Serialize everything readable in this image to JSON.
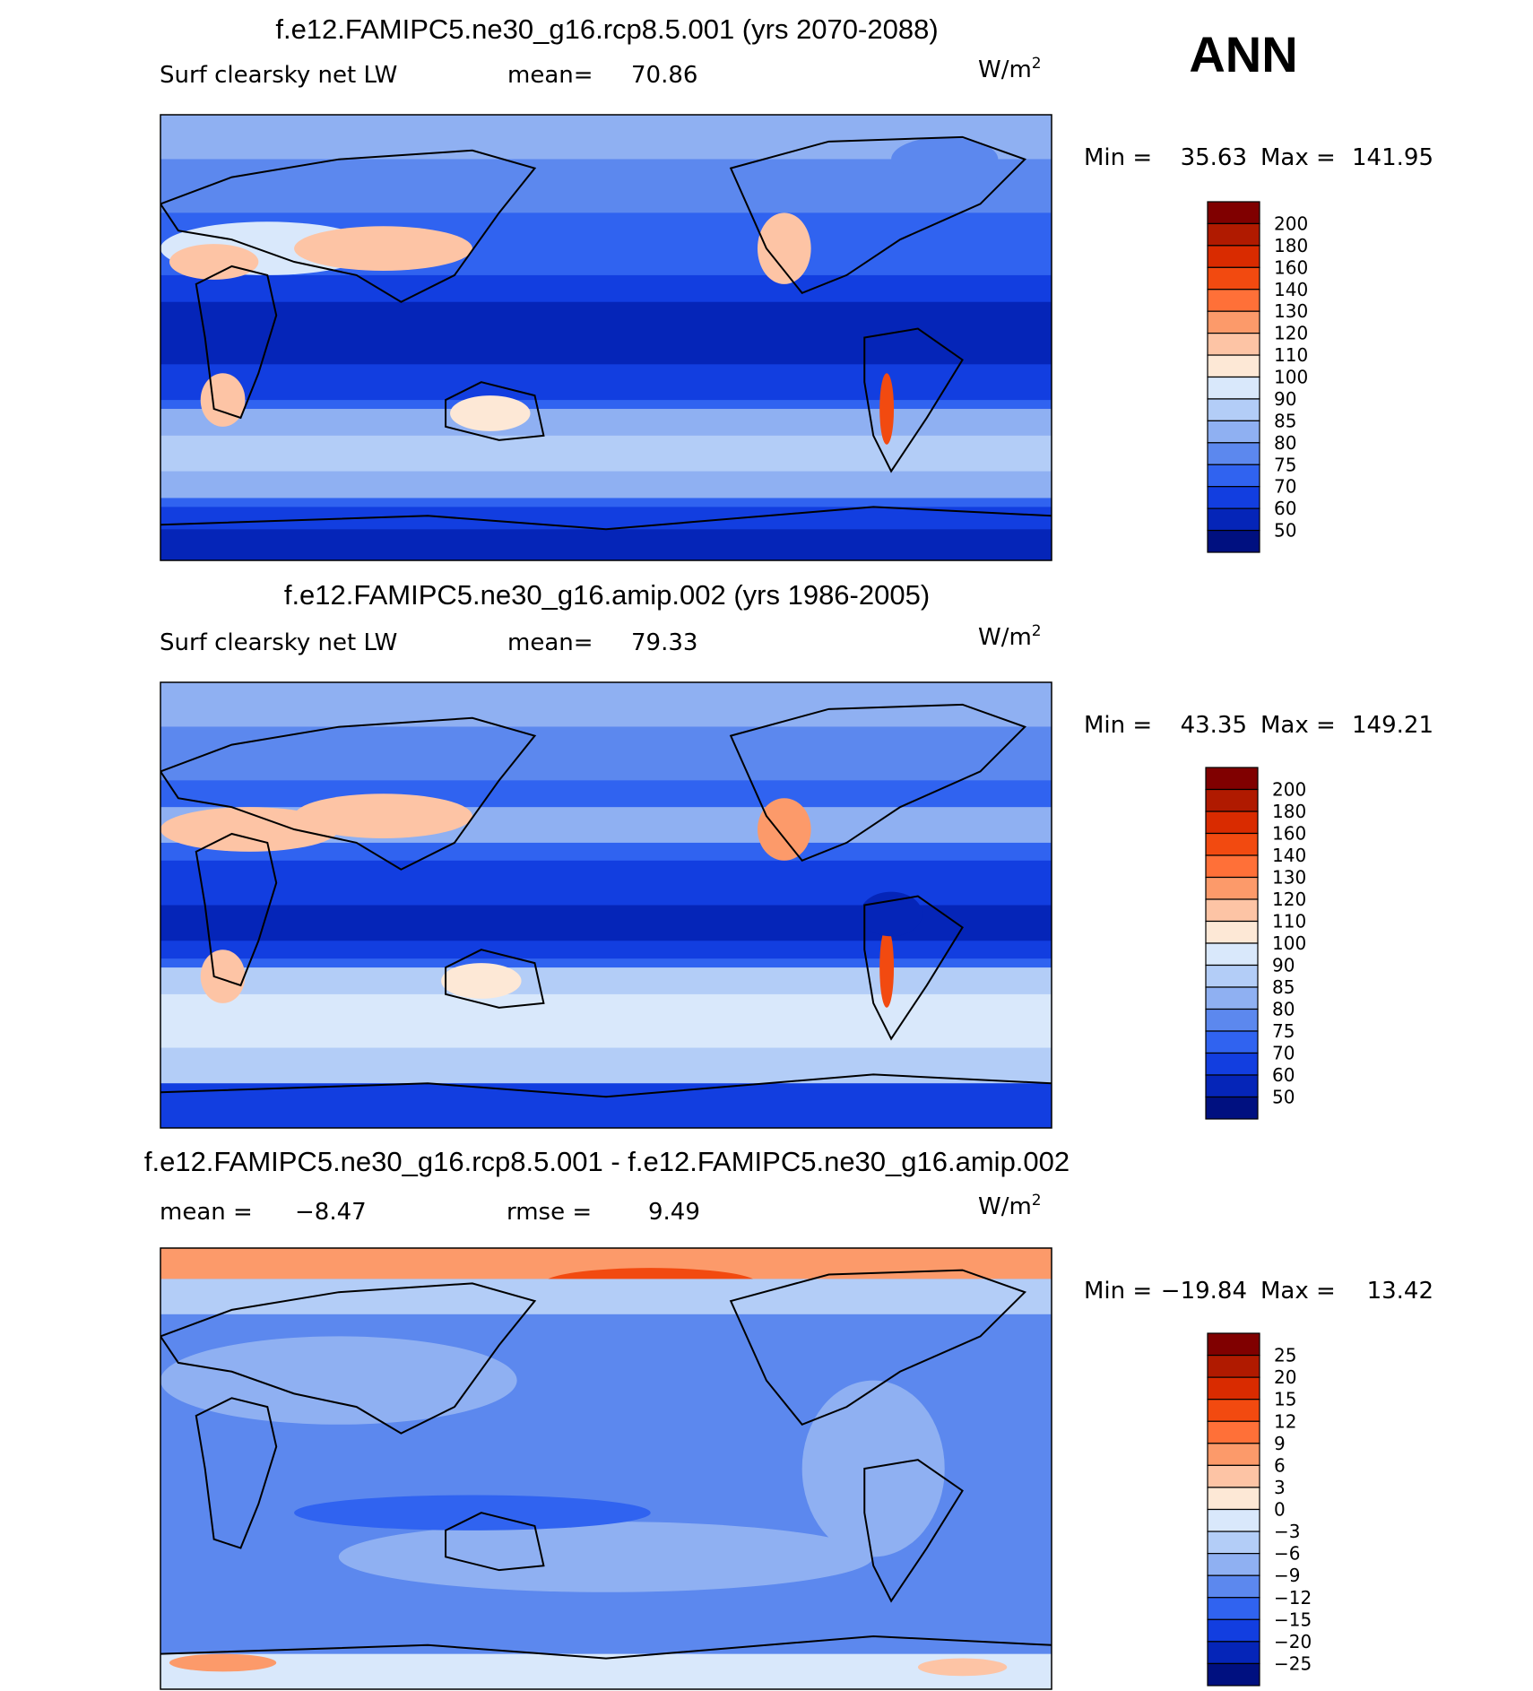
{
  "season": "ANN",
  "panels": [
    {
      "title": "f.e12.FAMIPC5.ne30_g16.rcp8.5.001 (yrs 2070-2088)",
      "subtitle": [
        "Surf clearsky net LW",
        "mean=",
        "70.86"
      ],
      "units": {
        "base": "W/m",
        "exponent": "2"
      },
      "stats": [
        "Min =",
        "35.63",
        "Max =",
        "141.95"
      ],
      "colorbar": {
        "labels": [
          "200",
          "180",
          "160",
          "140",
          "130",
          "120",
          "110",
          "100",
          "90",
          "85",
          "80",
          "75",
          "70",
          "60",
          "50"
        ],
        "colors": [
          "#800000",
          "#b01a00",
          "#d92b00",
          "#f24a10",
          "#ff7038",
          "#fc9a6a",
          "#fdc4a5",
          "#fde8d6",
          "#d9e8fb",
          "#b3cdf7",
          "#8fb0f2",
          "#5c88ee",
          "#3063f0",
          "#123ee0",
          "#0525b8",
          "#001080"
        ]
      }
    },
    {
      "title": "f.e12.FAMIPC5.ne30_g16.amip.002 (yrs 1986-2005)",
      "subtitle": [
        "Surf clearsky net LW",
        "mean=",
        "79.33"
      ],
      "units": {
        "base": "W/m",
        "exponent": "2"
      },
      "stats": [
        "Min =",
        "43.35",
        "Max =",
        "149.21"
      ],
      "colorbar": {
        "labels": [
          "200",
          "180",
          "160",
          "140",
          "130",
          "120",
          "110",
          "100",
          "90",
          "85",
          "80",
          "75",
          "70",
          "60",
          "50"
        ],
        "colors": [
          "#800000",
          "#b01a00",
          "#d92b00",
          "#f24a10",
          "#ff7038",
          "#fc9a6a",
          "#fdc4a5",
          "#fde8d6",
          "#d9e8fb",
          "#b3cdf7",
          "#8fb0f2",
          "#5c88ee",
          "#3063f0",
          "#123ee0",
          "#0525b8",
          "#001080"
        ]
      }
    },
    {
      "title": "f.e12.FAMIPC5.ne30_g16.rcp8.5.001 - f.e12.FAMIPC5.ne30_g16.amip.002",
      "subtitle": [
        "mean =",
        "−8.47",
        "rmse =",
        "9.49"
      ],
      "units": {
        "base": "W/m",
        "exponent": "2"
      },
      "stats": [
        "Min =",
        "−19.84",
        "Max =",
        "13.42"
      ],
      "colorbar": {
        "labels": [
          "25",
          "20",
          "15",
          "12",
          "9",
          "6",
          "3",
          "0",
          "−3",
          "−6",
          "−9",
          "−12",
          "−15",
          "−20",
          "−25"
        ],
        "colors": [
          "#800000",
          "#b01a00",
          "#d92b00",
          "#f24a10",
          "#ff7038",
          "#fc9a6a",
          "#fdc4a5",
          "#fde8d6",
          "#d9e8fb",
          "#b3cdf7",
          "#8fb0f2",
          "#5c88ee",
          "#3063f0",
          "#123ee0",
          "#0525b8",
          "#001080"
        ]
      }
    }
  ]
}
